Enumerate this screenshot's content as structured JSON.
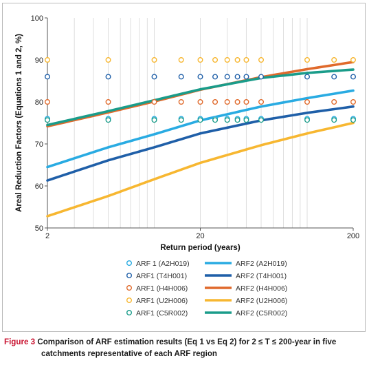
{
  "chart_data": {
    "type": "line",
    "title": "",
    "xlabel": "Return period (years)",
    "ylabel": "Areal Reduction Factors (Equations 1 and 2, %)",
    "x_scale": "log",
    "xlim": [
      2,
      200
    ],
    "ylim": [
      50,
      100
    ],
    "x_ticks": [
      "2",
      "20",
      "200"
    ],
    "y_ticks": [
      "50",
      "60",
      "70",
      "80",
      "90",
      "100"
    ],
    "grid": {
      "x_minor_vertical": true,
      "horizontal": false
    },
    "x_points": [
      2,
      5,
      10,
      15,
      20,
      25,
      30,
      35,
      40,
      50,
      100,
      150,
      200
    ],
    "series": [
      {
        "name": "ARF 1 (A2H019)",
        "kind": "points",
        "color": "#29abe2",
        "y": [
          76,
          76,
          76,
          76,
          76,
          76,
          76,
          76,
          76,
          76,
          76,
          76,
          76
        ]
      },
      {
        "name": "ARF1 (T4H001)",
        "kind": "points",
        "color": "#1f5fa8",
        "y": [
          86,
          86,
          86,
          86,
          86,
          86,
          86,
          86,
          86,
          86,
          86,
          86,
          86
        ]
      },
      {
        "name": "ARF1 (H4H006)",
        "kind": "points",
        "color": "#e06a2c",
        "y": [
          80,
          80,
          80,
          80,
          80,
          80,
          80,
          80,
          80,
          80,
          80,
          80,
          80
        ]
      },
      {
        "name": "ARF1 (U2H006)",
        "kind": "points",
        "color": "#f7b731",
        "y": [
          90,
          90,
          90,
          90,
          90,
          90,
          90,
          90,
          90,
          90,
          90,
          90,
          90
        ]
      },
      {
        "name": "ARF1 (C5R002)",
        "kind": "points",
        "color": "#1a9c8a",
        "y": [
          75.7,
          75.7,
          75.7,
          75.7,
          75.7,
          75.7,
          75.7,
          75.7,
          75.7,
          75.7,
          75.7,
          75.7,
          75.7
        ]
      },
      {
        "name": "ARF2 (A2H019)",
        "kind": "line",
        "color": "#29abe2",
        "x": [
          2,
          5,
          10,
          20,
          50,
          100,
          200
        ],
        "y": [
          64.5,
          69.2,
          72.3,
          75.6,
          78.9,
          80.9,
          82.7
        ]
      },
      {
        "name": "ARF2 (T4H001)",
        "kind": "line",
        "color": "#1f5fa8",
        "x": [
          2,
          5,
          10,
          20,
          50,
          100,
          200
        ],
        "y": [
          61.3,
          66.1,
          69.2,
          72.5,
          75.6,
          77.4,
          78.9
        ]
      },
      {
        "name": "ARF2 (H4H006)",
        "kind": "line",
        "color": "#e06a2c",
        "x": [
          2,
          5,
          10,
          20,
          50,
          100,
          200
        ],
        "y": [
          74.2,
          77.5,
          80.1,
          82.9,
          85.9,
          87.8,
          89.5
        ]
      },
      {
        "name": "ARF2 (U2H006)",
        "kind": "line",
        "color": "#f7b731",
        "x": [
          2,
          5,
          10,
          20,
          50,
          100,
          200
        ],
        "y": [
          52.8,
          57.6,
          61.6,
          65.5,
          69.7,
          72.5,
          75.0
        ]
      },
      {
        "name": "ARF2 (C5R002)",
        "kind": "line",
        "color": "#1a9c8a",
        "x": [
          2,
          5,
          10,
          20,
          50,
          100,
          200
        ],
        "y": [
          74.5,
          77.8,
          80.4,
          83.0,
          85.7,
          86.9,
          87.7
        ]
      }
    ]
  },
  "caption": {
    "label": "Figure 3",
    "line1": "Comparison of ARF estimation results (Eq 1 vs Eq 2) for 2 ≤ T ≤ 200-year in five",
    "line2": "catchments representative of each ARF region"
  }
}
